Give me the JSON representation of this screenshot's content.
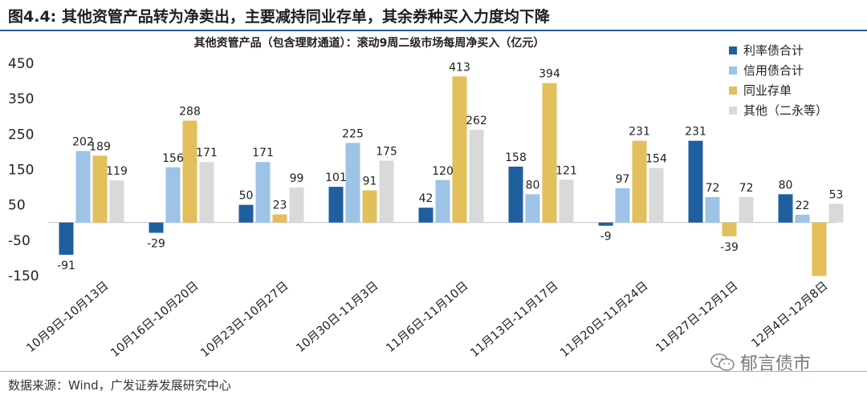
{
  "figure": {
    "title": "图4.4:  其他资管产品转为净卖出，主要减持同业存单，其余券种买入力度均下降",
    "source": "数据来源：Wind，广发证券发展研究中心",
    "watermark": "郁言债市"
  },
  "chart_data": {
    "type": "bar",
    "title": "其他资管产品（包含理财通道）：滚动9周二级市场每周净买入（亿元）",
    "xlabel": "",
    "ylabel": "",
    "ylim": [
      -150,
      450
    ],
    "yticks": [
      450,
      350,
      250,
      150,
      50,
      -50,
      -150
    ],
    "grid": false,
    "legend_position": "top-right",
    "categories": [
      "10月9日-10月13日",
      "10月16日-10月20日",
      "10月23日-10月27日",
      "10月30日-11月3日",
      "11月6日-11月10日",
      "11月13日-11月17日",
      "11月20日-11月24日",
      "11月27日-12月1日",
      "12月4日-12月8日"
    ],
    "series": [
      {
        "name": "利率债合计",
        "color": "#1f5f9e",
        "values": [
          -91,
          -29,
          50,
          101,
          42,
          158,
          -9,
          231,
          80
        ],
        "labels": [
          "-91",
          "-29",
          "50",
          "101",
          "42",
          "158",
          "-9",
          "231",
          "80"
        ]
      },
      {
        "name": "信用债合计",
        "color": "#9dc3e6",
        "values": [
          202,
          156,
          171,
          225,
          120,
          80,
          97,
          72,
          22
        ],
        "labels": [
          "202",
          "156",
          "171",
          "225",
          "120",
          "80",
          "97",
          "72",
          "22"
        ]
      },
      {
        "name": "同业存单",
        "color": "#e2bf5a",
        "values": [
          189,
          288,
          23,
          91,
          413,
          394,
          231,
          -39,
          -151
        ],
        "labels": [
          "189",
          "288",
          "23",
          "91",
          "413",
          "394",
          "231",
          "-39",
          ""
        ]
      },
      {
        "name": "其他（二永等）",
        "color": "#d9d9d9",
        "values": [
          119,
          171,
          99,
          175,
          262,
          121,
          154,
          72,
          53
        ],
        "labels": [
          "119",
          "171",
          "99",
          "175",
          "262",
          "121",
          "154",
          "72",
          "53"
        ]
      }
    ]
  }
}
